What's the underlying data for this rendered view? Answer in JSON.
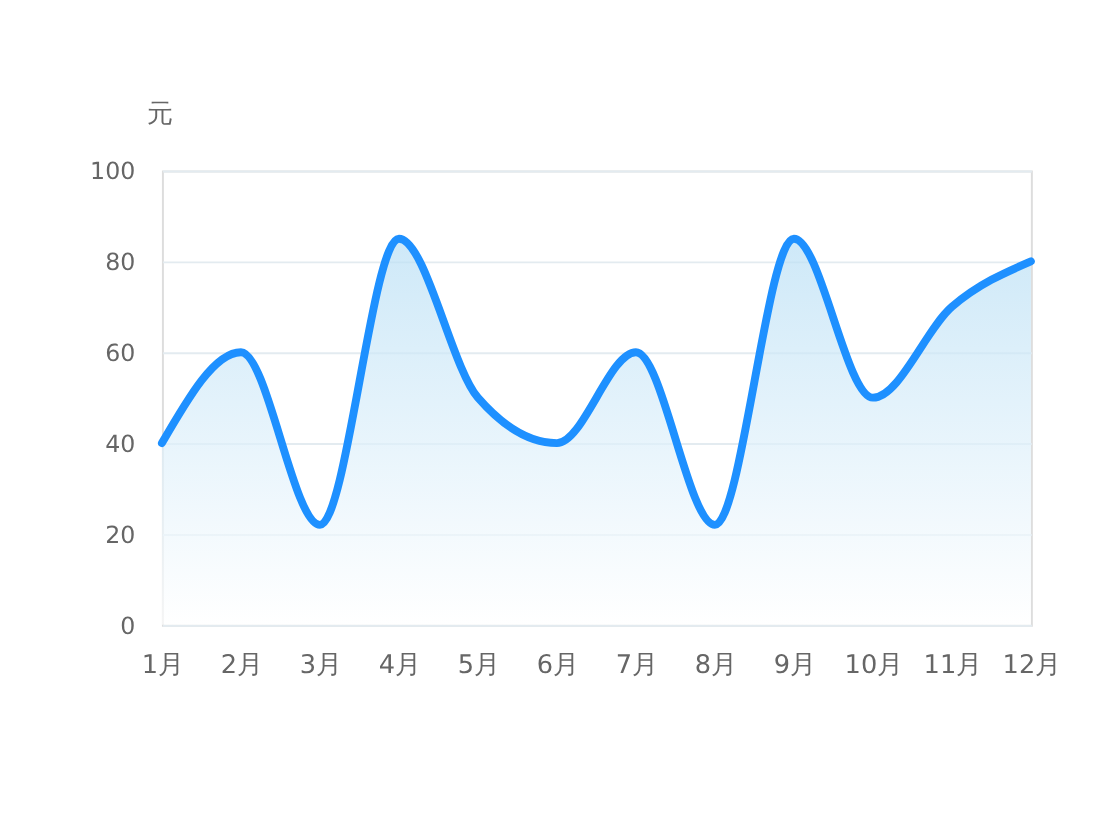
{
  "chart_data": {
    "type": "area",
    "ylabel": "元",
    "categories": [
      "1月",
      "2月",
      "3月",
      "4月",
      "5月",
      "6月",
      "7月",
      "8月",
      "9月",
      "10月",
      "11月",
      "12月"
    ],
    "series": [
      {
        "color": "#1e90ff",
        "values": [
          40,
          60,
          22,
          85,
          50,
          40,
          60,
          22,
          85,
          50,
          70,
          80
        ]
      }
    ],
    "ylim": [
      0,
      100
    ],
    "yticks": [
      0,
      20,
      40,
      60,
      80,
      100
    ],
    "grid": "y"
  }
}
